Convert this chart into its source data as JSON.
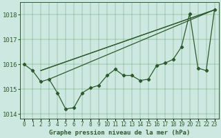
{
  "title": "Graphe pression niveau de la mer (hPa)",
  "background_color": "#cce8e0",
  "grid_color": "#4a8a4a",
  "line_color": "#2d5a2d",
  "hours": [
    0,
    1,
    2,
    3,
    4,
    5,
    6,
    7,
    8,
    9,
    10,
    11,
    12,
    13,
    14,
    15,
    16,
    17,
    18,
    19,
    20,
    21,
    22,
    23
  ],
  "pressure": [
    1016.0,
    1015.75,
    1015.3,
    1015.4,
    1014.85,
    1014.2,
    1014.25,
    1014.85,
    1015.05,
    1015.15,
    1015.55,
    1015.8,
    1015.55,
    1015.55,
    1015.35,
    1015.4,
    1015.95,
    1016.05,
    1016.2,
    1016.7,
    1018.05,
    1015.85,
    1015.75,
    1018.2
  ],
  "trend1_x": [
    2,
    23
  ],
  "trend1_y": [
    1015.75,
    1018.2
  ],
  "trend2_x": [
    2,
    23
  ],
  "trend2_y": [
    1015.75,
    1018.2
  ],
  "trend3_x": [
    3,
    23
  ],
  "trend3_y": [
    1015.4,
    1018.2
  ],
  "ylim": [
    1013.8,
    1018.5
  ],
  "yticks": [
    1014,
    1015,
    1016,
    1017,
    1018
  ],
  "xlim": [
    -0.5,
    23.5
  ],
  "ylabel_fontsize": 6.5,
  "xlabel_fontsize": 5.5,
  "title_fontsize": 6.5,
  "marker_size": 2.2,
  "line_width": 0.9
}
